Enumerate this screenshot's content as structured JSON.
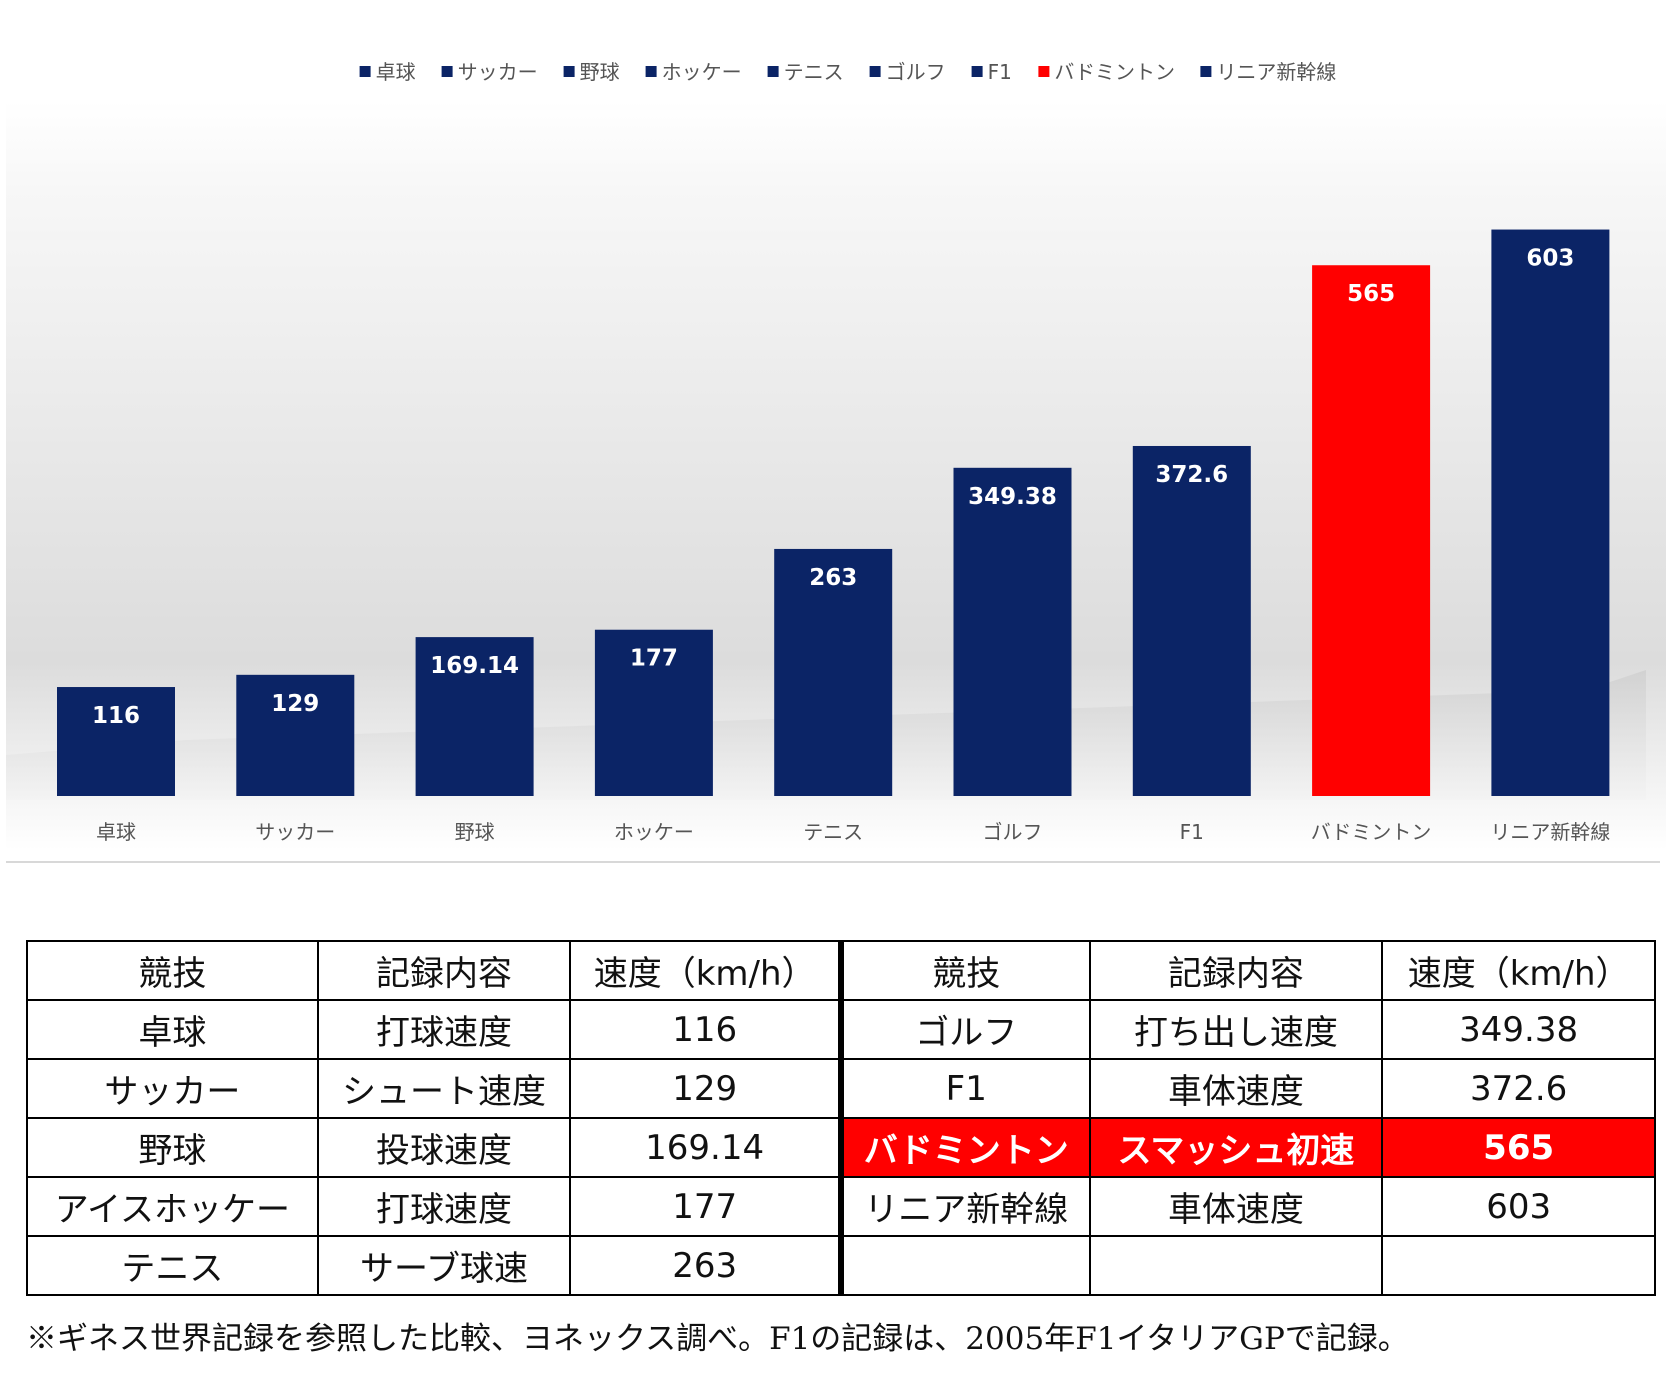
{
  "chart_data": {
    "type": "bar",
    "categories": [
      "卓球",
      "サッカー",
      "野球",
      "ホッケー",
      "テニス",
      "ゴルフ",
      "F1",
      "バドミントン",
      "リニア新幹線"
    ],
    "values": [
      116,
      129,
      169.14,
      177,
      263,
      349.38,
      372.6,
      565,
      603
    ],
    "value_labels": [
      "116",
      "129",
      "169.14",
      "177",
      "263",
      "349.38",
      "372.6",
      "565",
      "603"
    ],
    "colors": [
      "#0b2466",
      "#0b2466",
      "#0b2466",
      "#0b2466",
      "#0b2466",
      "#0b2466",
      "#0b2466",
      "#ff0000",
      "#0b2466"
    ],
    "legend_placement": "top-center",
    "ylim": [
      0,
      660
    ],
    "grid": false,
    "title": "",
    "xlabel": "",
    "ylabel": ""
  },
  "table": {
    "headers": [
      "競技",
      "記録内容",
      "速度（km/h）",
      "競技",
      "記録内容",
      "速度（km/h）"
    ],
    "rows": [
      {
        "left": [
          "卓球",
          "打球速度",
          "116"
        ],
        "right": [
          "ゴルフ",
          "打ち出し速度",
          "349.38"
        ]
      },
      {
        "left": [
          "サッカー",
          "シュート速度",
          "129"
        ],
        "right": [
          "F1",
          "車体速度",
          "372.6"
        ]
      },
      {
        "left": [
          "野球",
          "投球速度",
          "169.14"
        ],
        "right": [
          "バドミントン",
          "スマッシュ初速",
          "565"
        ]
      },
      {
        "left": [
          "アイスホッケー",
          "打球速度",
          "177"
        ],
        "right": [
          "リニア新幹線",
          "車体速度",
          "603"
        ]
      },
      {
        "left": [
          "テニス",
          "サーブ球速",
          "263"
        ],
        "right": [
          "",
          "",
          ""
        ]
      }
    ],
    "highlight_row": 2,
    "highlight_color": "#ff0000"
  },
  "footnote": "※ギネス世界記録を参照した比較、ヨネックス調べ。F1の記録は、2005年F1イタリアGPで記録。"
}
